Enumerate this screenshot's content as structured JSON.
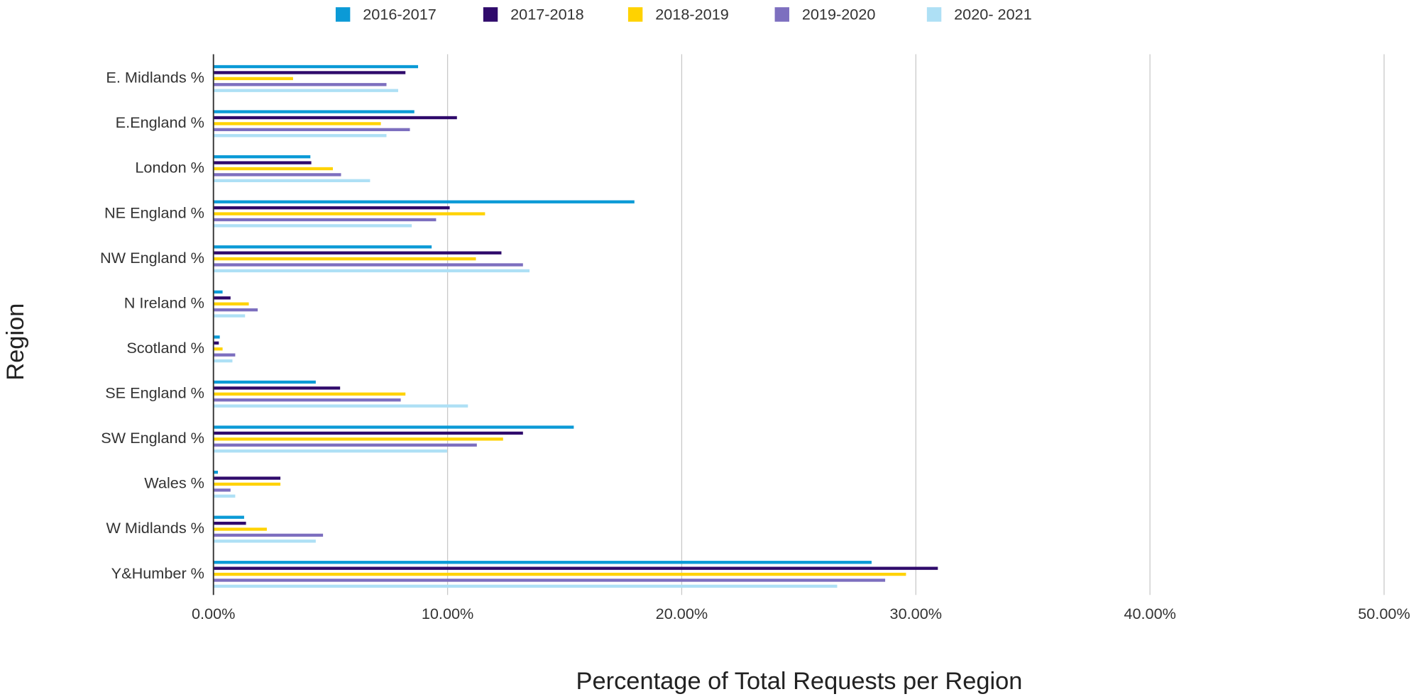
{
  "chart_data": {
    "type": "hbar",
    "y_axis_label": "Region",
    "x_axis_label": "Percentage of Total Requests per Region",
    "categories": [
      "E. Midlands %",
      "E.England %",
      "London %",
      "NE England  %",
      "NW England  %",
      "N Ireland %",
      "Scotland %",
      "SE England %",
      "SW England %",
      "Wales %",
      "W Midlands %",
      "Y&Humber %"
    ],
    "series": [
      {
        "name": "2016-2017",
        "color": "#0b9ad6",
        "values": [
          8.74,
          8.58,
          4.14,
          17.98,
          9.32,
          0.39,
          0.27,
          4.37,
          15.39,
          0.19,
          1.31,
          28.11
        ]
      },
      {
        "name": "2017-2018",
        "color": "#2f0a6b",
        "values": [
          8.2,
          10.4,
          4.18,
          10.09,
          12.3,
          0.73,
          0.23,
          5.41,
          13.22,
          2.86,
          1.39,
          30.94
        ]
      },
      {
        "name": "2018-2019",
        "color": "#ffd200",
        "values": [
          3.4,
          7.15,
          5.1,
          11.6,
          11.21,
          1.51,
          0.39,
          8.2,
          12.37,
          2.86,
          2.28,
          29.58
        ]
      },
      {
        "name": "2019-2020",
        "color": "#7d6fbf",
        "values": [
          7.39,
          8.39,
          5.45,
          9.51,
          13.22,
          1.89,
          0.93,
          8.0,
          11.25,
          0.73,
          4.68,
          28.69
        ]
      },
      {
        "name": "2020- 2021",
        "color": "#aee0f5",
        "values": [
          7.89,
          7.39,
          6.69,
          8.47,
          13.5,
          1.35,
          0.81,
          10.87,
          9.98,
          0.93,
          4.37,
          26.64
        ]
      }
    ],
    "xlim": [
      0,
      50
    ],
    "xticks": [
      {
        "value": 0,
        "label": "0.00%"
      },
      {
        "value": 10,
        "label": "10.00%"
      },
      {
        "value": 20,
        "label": "20.00%"
      },
      {
        "value": 30,
        "label": "30.00%"
      },
      {
        "value": 40,
        "label": "40.00%"
      },
      {
        "value": 50,
        "label": "50.00%"
      }
    ],
    "grid": true,
    "legend": "top"
  }
}
